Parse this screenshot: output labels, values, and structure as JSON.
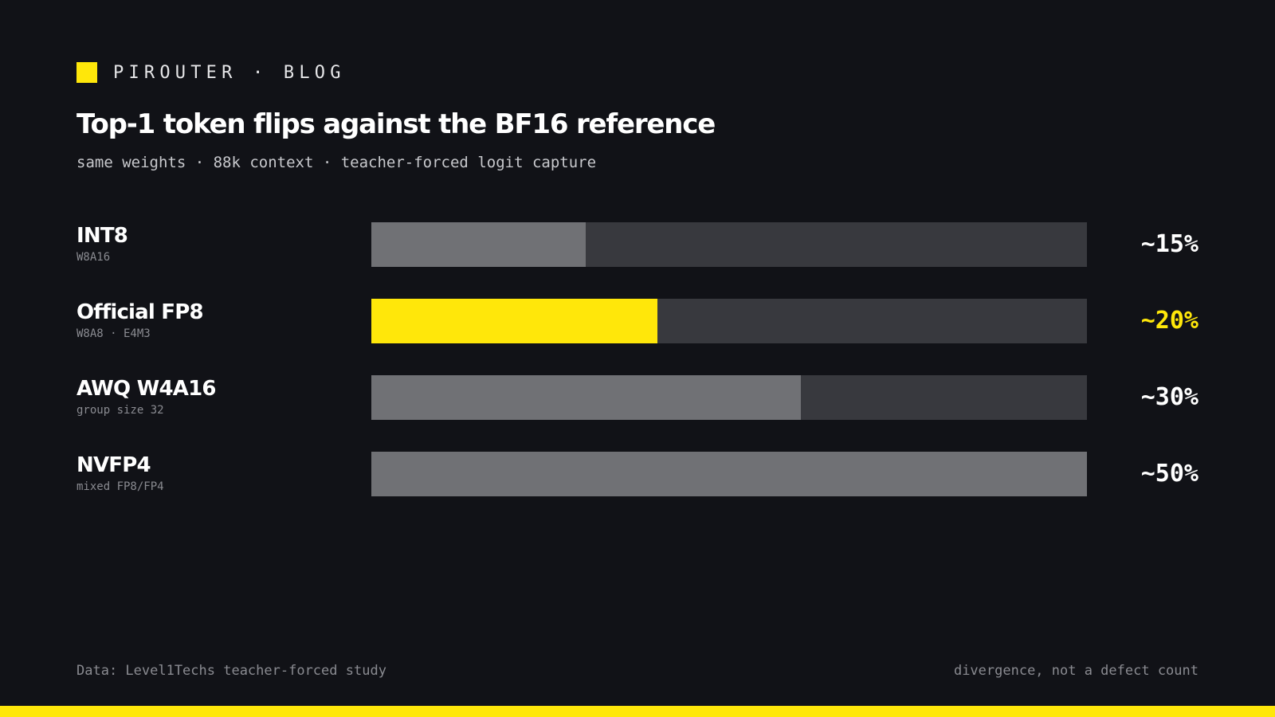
{
  "brand": {
    "text": "PIROUTER · BLOG",
    "accent_color": "#ffe70a"
  },
  "chart_data": {
    "type": "bar",
    "orientation": "horizontal",
    "title": "Top-1 token flips against the BF16 reference",
    "subtitle": "same weights · 88k context · teacher-forced logit capture",
    "xlim": [
      0,
      50
    ],
    "grid": false,
    "categories": [
      "INT8",
      "Official FP8",
      "AWQ W4A16",
      "NVFP4"
    ],
    "category_details": [
      "W8A16",
      "W8A8 · E4M3",
      "group size 32",
      "mixed FP8/FP4"
    ],
    "values": [
      15,
      20,
      30,
      50
    ],
    "value_labels": [
      "~15%",
      "~20%",
      "~30%",
      "~50%"
    ],
    "highlighted_category": "Official FP8",
    "colors": {
      "default_bar": "#707175",
      "highlight_bar": "#ffe70a",
      "track": "#38393e"
    }
  },
  "footer": {
    "source": "Data: Level1Techs teacher-forced study",
    "note": "divergence, not a defect count"
  },
  "theme": {
    "background": "#111217",
    "accent": "#ffe70a"
  }
}
